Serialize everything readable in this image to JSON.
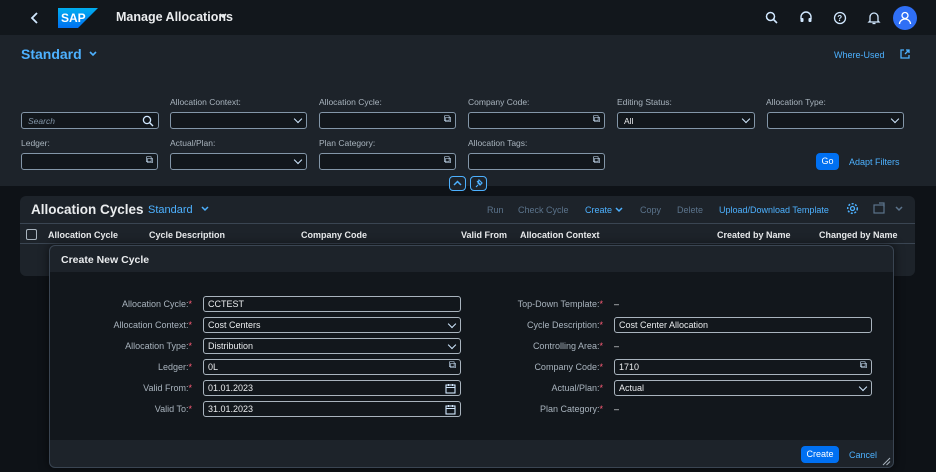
{
  "shell": {
    "back_icon": "chevron-left-icon",
    "logo_text": "SAP",
    "app_title": "Manage Allocations",
    "icons": [
      "search-icon",
      "headset-icon",
      "help-icon",
      "bell-icon",
      "user-avatar-icon"
    ]
  },
  "header": {
    "variant": "Standard",
    "where_used": "Where-Used",
    "filters": {
      "search_placeholder": "Search",
      "allocation_context": "Allocation Context:",
      "allocation_cycle": "Allocation Cycle:",
      "company_code": "Company Code:",
      "editing_status": "Editing Status:",
      "editing_status_value": "All",
      "allocation_type": "Allocation Type:",
      "ledger": "Ledger:",
      "actual_plan": "Actual/Plan:",
      "plan_category": "Plan Category:",
      "allocation_tags": "Allocation Tags:"
    },
    "go": "Go",
    "adapt_filters": "Adapt Filters"
  },
  "table": {
    "title": "Allocation Cycles",
    "variant": "Standard",
    "toolbar": {
      "run": "Run",
      "check_cycle": "Check Cycle",
      "create": "Create",
      "copy": "Copy",
      "delete": "Delete",
      "upload_download": "Upload/Download Template"
    },
    "columns": [
      "Allocation Cycle",
      "Cycle Description",
      "Company Code",
      "Valid From",
      "Allocation Context",
      "Created by Name",
      "Changed by Name"
    ]
  },
  "dialog": {
    "title": "Create New Cycle",
    "left": [
      {
        "label": "Allocation Cycle:",
        "value": "CCTEST"
      },
      {
        "label": "Allocation Context:",
        "value": "Cost Centers"
      },
      {
        "label": "Allocation Type:",
        "value": "Distribution"
      },
      {
        "label": "Ledger:",
        "value": "0L"
      },
      {
        "label": "Valid From:",
        "value": "01.01.2023"
      },
      {
        "label": "Valid To:",
        "value": "31.01.2023"
      }
    ],
    "right": [
      {
        "label": "Top-Down Template:",
        "value": "–"
      },
      {
        "label": "Cycle Description:",
        "value": "Cost Center Allocation"
      },
      {
        "label": "Controlling Area:",
        "value": "–"
      },
      {
        "label": "Company Code:",
        "value": "1710"
      },
      {
        "label": "Actual/Plan:",
        "value": "Actual"
      },
      {
        "label": "Plan Category:",
        "value": "–"
      }
    ],
    "required_mark": "*",
    "create": "Create",
    "cancel": "Cancel"
  },
  "colors": {
    "accent": "#4db1ff",
    "emphasized": "#0070f2",
    "required": "#ff5c77"
  }
}
